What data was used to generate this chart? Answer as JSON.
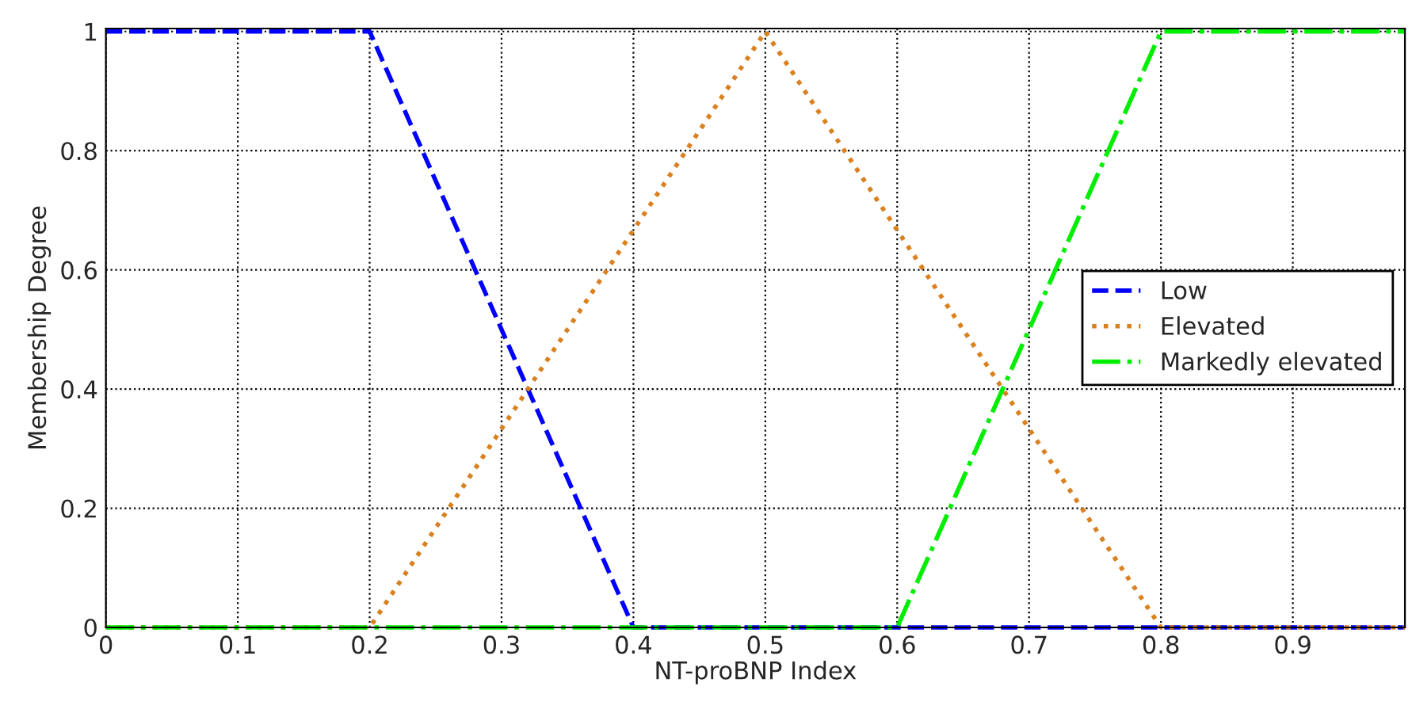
{
  "chart_data": {
    "type": "line",
    "xlabel": "NT-proBNP Index",
    "ylabel": "Membership Degree",
    "xlim": [
      0,
      0.985
    ],
    "xticks": [
      0,
      0.1,
      0.2,
      0.3,
      0.4,
      0.5,
      0.6,
      0.7,
      0.8,
      0.9
    ],
    "ylim": [
      0,
      1.005
    ],
    "yticks": [
      0,
      0.2,
      0.4,
      0.6,
      0.8,
      1
    ],
    "grid": true,
    "legend": "right",
    "marker": "none",
    "series": [
      {
        "name": "Low",
        "color": "#0000ff",
        "line_style": "dashed",
        "x": [
          0,
          0.2,
          0.4,
          0.985
        ],
        "values": [
          1,
          1,
          0,
          0
        ]
      },
      {
        "name": "Elevated",
        "color": "#d9801f",
        "line_style": "dotted",
        "x": [
          0,
          0.2,
          0.5,
          0.8,
          0.985
        ],
        "values": [
          0,
          0,
          1,
          0,
          0
        ]
      },
      {
        "name": "Markedly elevated",
        "color": "#00ee00",
        "line_style": "dashdot",
        "x": [
          0,
          0.6,
          0.8,
          0.985
        ],
        "values": [
          0,
          0,
          1,
          1
        ]
      }
    ]
  }
}
